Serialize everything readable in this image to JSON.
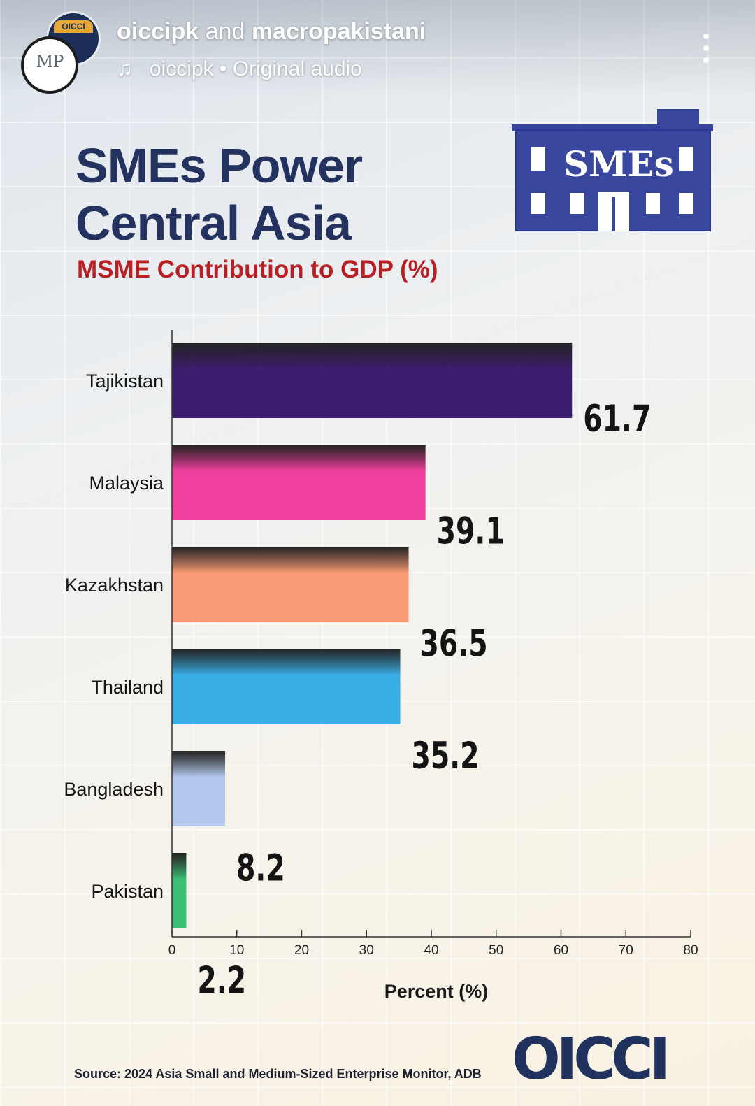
{
  "header": {
    "user_primary": "oiccipk",
    "user_joiner": "and",
    "user_secondary": "macropakistani",
    "audio_user": "oiccipk",
    "audio_separator": "•",
    "audio_label": "Original audio",
    "avatar_back_text": "OICCI",
    "avatar_front_text": "MP"
  },
  "title_line1": "SMEs Power",
  "title_line2": "Central Asia",
  "badge_text": "SMEs",
  "source": "Source: 2024 Asia Small and Medium-Sized Enterprise Monitor, ADB",
  "logo_text": "OICCI",
  "chart_data": {
    "type": "bar",
    "orientation": "horizontal",
    "title": "MSME Contribution to GDP (%)",
    "xlabel": "Percent (%)",
    "ylabel": "",
    "categories": [
      "Tajikistan",
      "Malaysia",
      "Kazakhstan",
      "Thailand",
      "Bangladesh",
      "Pakistan"
    ],
    "values": [
      61.7,
      39.1,
      36.5,
      35.2,
      8.2,
      2.2
    ],
    "value_labels": [
      "61.7",
      "39.1",
      "36.5",
      "35.2",
      "8.2",
      "2.2"
    ],
    "xlim": [
      0,
      80
    ],
    "ticks": [
      0,
      10,
      20,
      30,
      40,
      50,
      60,
      70,
      80
    ],
    "colors": [
      "#3c1e6e",
      "#f0409e",
      "#f99a76",
      "#3aaee6",
      "#b4c9ee",
      "#3dbe77"
    ],
    "grid": false,
    "legend": "none"
  }
}
